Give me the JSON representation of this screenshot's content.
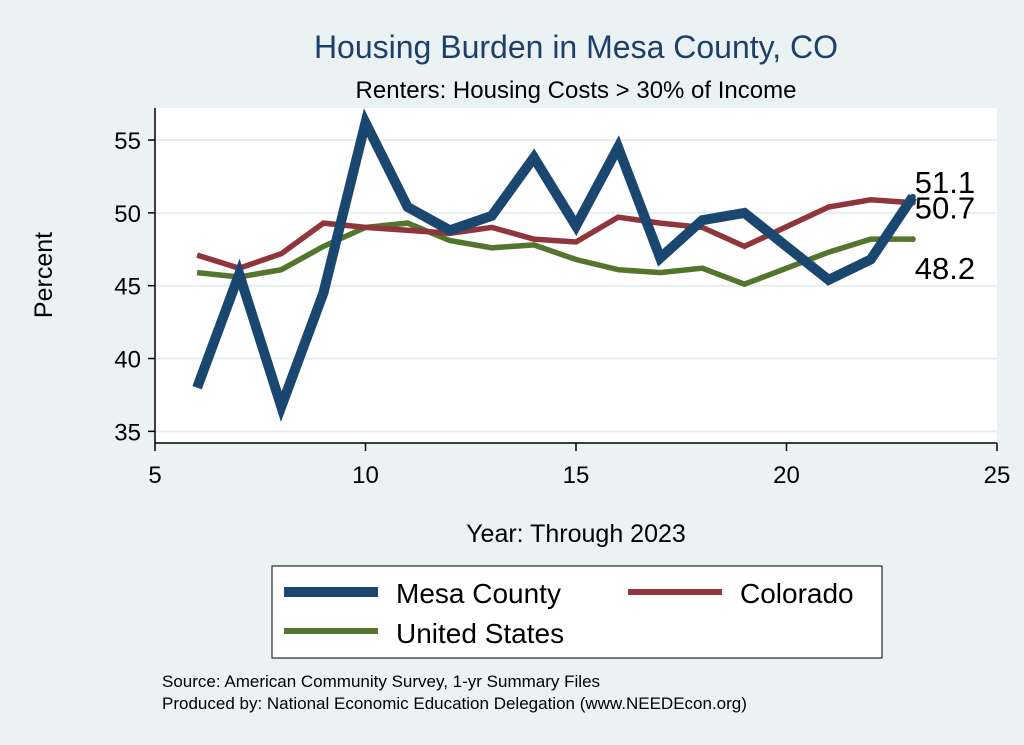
{
  "chart_data": {
    "type": "line",
    "title": "Housing Burden in Mesa County, CO",
    "subtitle": "Renters: Housing Costs > 30% of Income",
    "xlabel": "Year: Through 2023",
    "ylabel": "Percent",
    "xlim": [
      5,
      25
    ],
    "ylim": [
      34.2,
      57.2
    ],
    "xticks": [
      5,
      10,
      15,
      20,
      25
    ],
    "yticks": [
      35,
      40,
      45,
      50,
      55
    ],
    "grid": true,
    "legend_position": "bottom",
    "x": [
      6,
      7,
      8,
      9,
      10,
      11,
      12,
      13,
      14,
      15,
      16,
      17,
      18,
      19,
      21,
      22,
      23
    ],
    "series": [
      {
        "name": "Mesa County",
        "color": "#1a476f",
        "width": "thick",
        "values": [
          38.0,
          45.8,
          36.7,
          44.5,
          56.2,
          50.4,
          48.8,
          49.8,
          53.8,
          49.1,
          54.5,
          46.9,
          49.5,
          50.0,
          45.4,
          46.8,
          51.1
        ],
        "end_label": "51.1"
      },
      {
        "name": "Colorado",
        "color": "#90353b",
        "width": "medium",
        "values": [
          47.1,
          46.2,
          47.2,
          49.3,
          49.0,
          48.8,
          48.6,
          49.0,
          48.2,
          48.0,
          49.7,
          49.3,
          49.0,
          47.7,
          50.4,
          50.9,
          50.7
        ],
        "end_label": "50.7"
      },
      {
        "name": "United States",
        "color": "#55752f",
        "width": "medium",
        "values": [
          45.9,
          45.6,
          46.1,
          47.7,
          49.0,
          49.3,
          48.1,
          47.6,
          47.8,
          46.8,
          46.1,
          45.9,
          46.2,
          45.1,
          47.3,
          48.2,
          48.2
        ],
        "end_label": "48.2"
      }
    ]
  },
  "footnote": {
    "source": "Source: American Community Survey, 1-yr Summary Files",
    "produced_by": "Produced by: National Economic Education Delegation (www.NEEDEcon.org)"
  },
  "colors": {
    "background": "#eaf2f3",
    "plot_background": "#ffffff",
    "title": "#1f3f6b"
  }
}
